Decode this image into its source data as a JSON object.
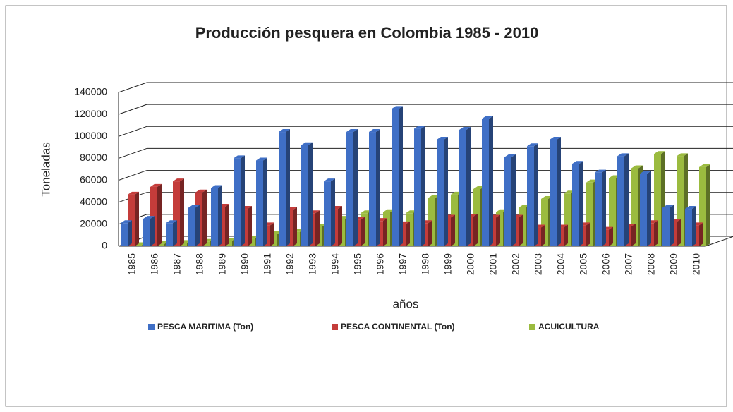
{
  "chart_data": {
    "type": "bar3d",
    "title": "Producción pesquera en Colombia 1985 - 2010",
    "y_label": "Toneladas",
    "x_label": "años",
    "categories": [
      "1985",
      "1986",
      "1987",
      "1988",
      "1989",
      "1990",
      "1991",
      "1992",
      "1993",
      "1994",
      "1995",
      "1996",
      "1997",
      "1998",
      "1999",
      "2000",
      "2001",
      "2002",
      "2003",
      "2004",
      "2005",
      "2006",
      "2007",
      "2008",
      "2009",
      "2010"
    ],
    "series": [
      {
        "name": "PESCA MARITIMA (Ton)",
        "color": "#3f6fc6",
        "values": [
          21000,
          25000,
          21000,
          35000,
          53000,
          80000,
          78000,
          104000,
          92000,
          59000,
          104000,
          104000,
          125000,
          107000,
          97000,
          106000,
          116000,
          81000,
          91000,
          97000,
          75000,
          67000,
          82000,
          66000,
          35000,
          34000
        ]
      },
      {
        "name": "PESCA CONTINENTAL (Ton)",
        "color": "#c43c3a",
        "values": [
          47000,
          54000,
          59000,
          49000,
          36000,
          34000,
          19000,
          33000,
          30000,
          34000,
          24000,
          23000,
          20000,
          21000,
          26000,
          27000,
          26000,
          26000,
          17000,
          17000,
          19000,
          15000,
          18000,
          21000,
          22000,
          19000
        ]
      },
      {
        "name": "ACUICULTURA",
        "color": "#9bbb3f",
        "values": [
          1000,
          2000,
          3000,
          4000,
          5000,
          7000,
          11000,
          13000,
          18000,
          25000,
          30000,
          31000,
          30000,
          44000,
          47000,
          52000,
          31000,
          35000,
          43000,
          48000,
          58000,
          62000,
          71000,
          84000,
          82000,
          72000
        ]
      }
    ],
    "ylim": [
      0,
      140000
    ],
    "yticks": [
      0,
      20000,
      40000,
      60000,
      80000,
      100000,
      120000,
      140000
    ],
    "grid": true,
    "legend": "bottom"
  }
}
